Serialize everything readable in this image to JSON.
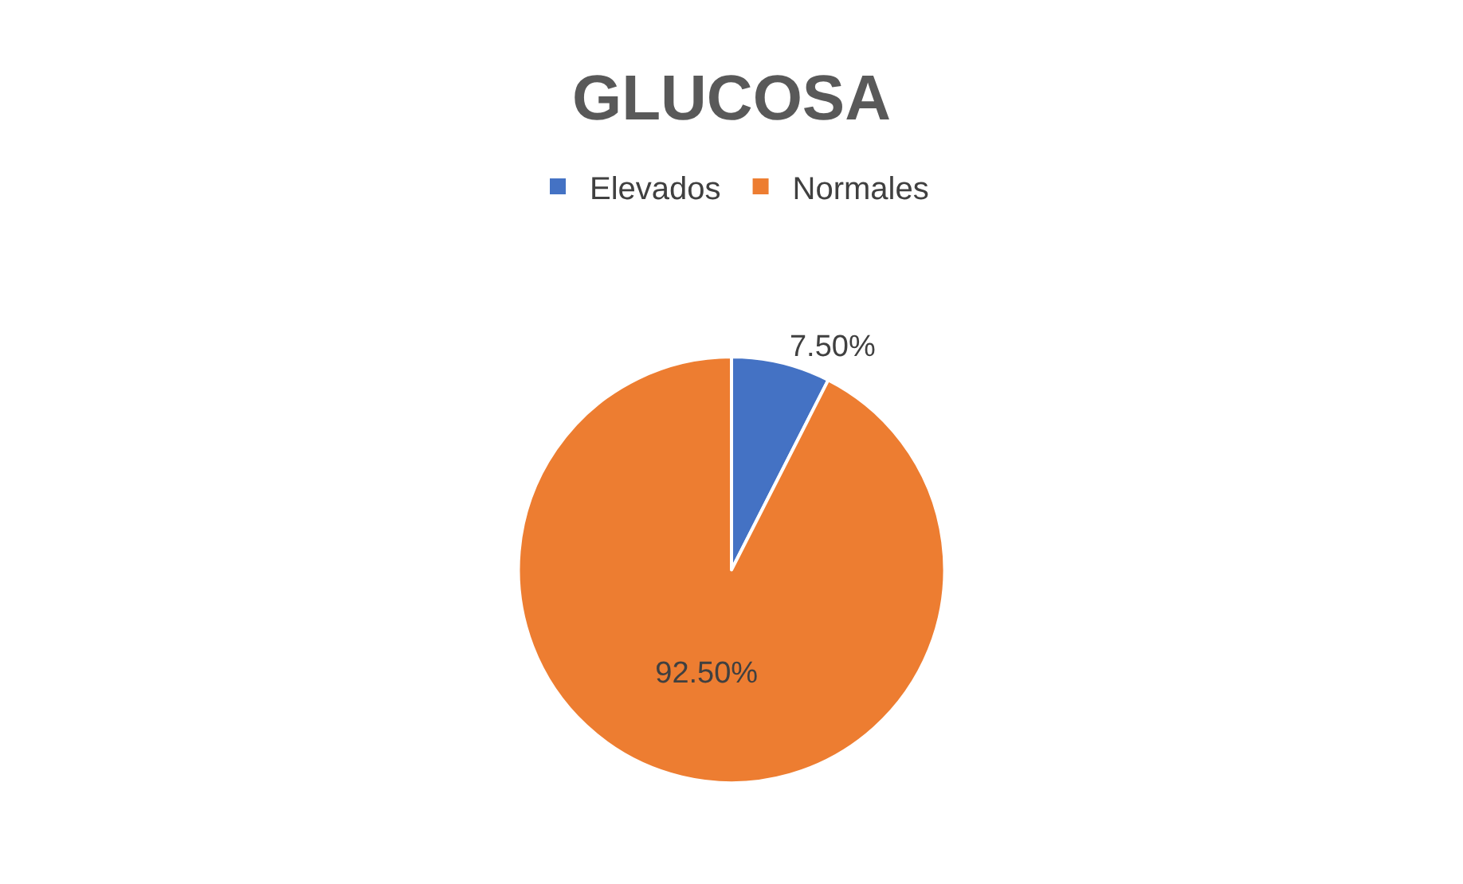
{
  "chart_data": {
    "type": "pie",
    "title": "GLUCOSA",
    "categories": [
      "Elevados",
      "Normales"
    ],
    "values": [
      7.5,
      92.5
    ],
    "colors": [
      "#4472c4",
      "#ed7d31"
    ],
    "value_labels": [
      "7.50%",
      "92.50%"
    ],
    "legend": "top"
  }
}
